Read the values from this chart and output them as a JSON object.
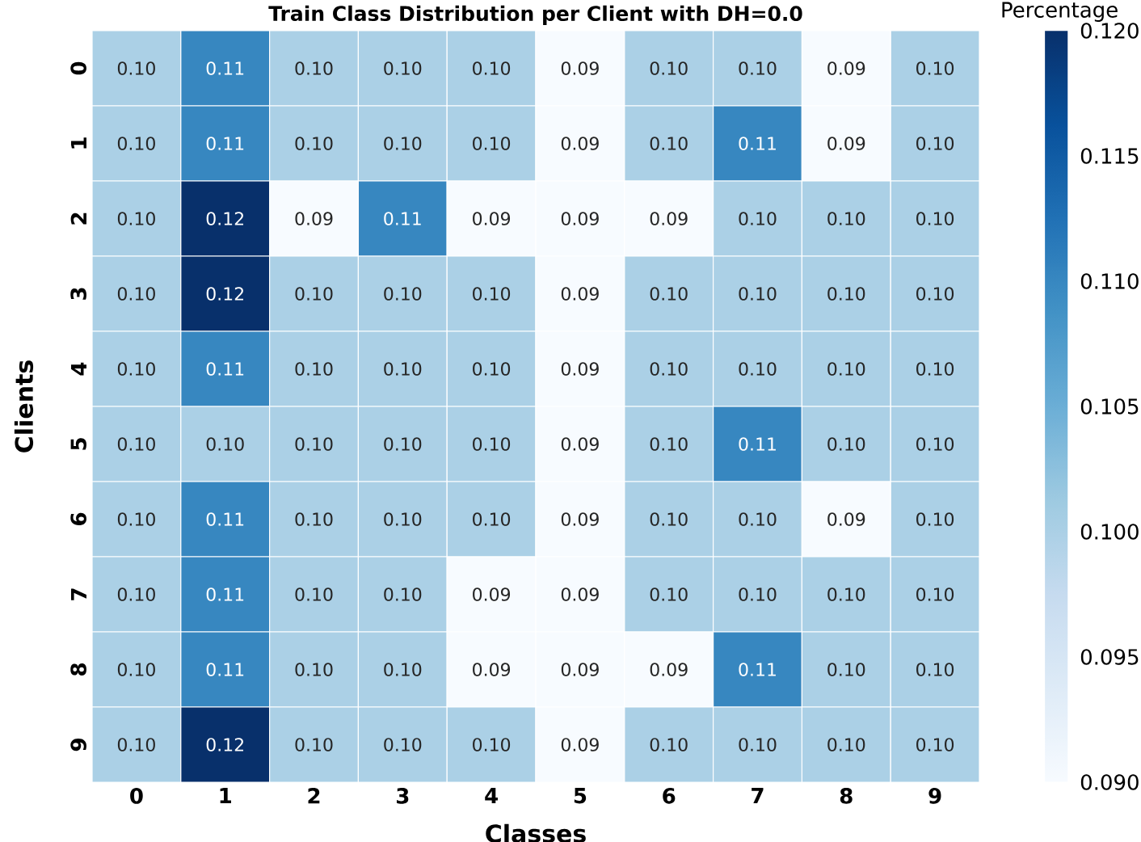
{
  "chart_data": {
    "type": "heatmap",
    "title": "Train Class Distribution per Client with DH=0.0",
    "xlabel": "Classes",
    "ylabel": "Clients",
    "clabel": "Percentage",
    "categories": [
      "0",
      "1",
      "2",
      "3",
      "4",
      "5",
      "6",
      "7",
      "8",
      "9"
    ],
    "y_categories": [
      "0",
      "1",
      "2",
      "3",
      "4",
      "5",
      "6",
      "7",
      "8",
      "9"
    ],
    "cells": [
      [
        0.1,
        0.11,
        0.1,
        0.1,
        0.1,
        0.09,
        0.1,
        0.1,
        0.09,
        0.1
      ],
      [
        0.1,
        0.11,
        0.1,
        0.1,
        0.1,
        0.09,
        0.1,
        0.11,
        0.09,
        0.1
      ],
      [
        0.1,
        0.12,
        0.09,
        0.11,
        0.09,
        0.09,
        0.09,
        0.1,
        0.1,
        0.1
      ],
      [
        0.1,
        0.12,
        0.1,
        0.1,
        0.1,
        0.09,
        0.1,
        0.1,
        0.1,
        0.1
      ],
      [
        0.1,
        0.11,
        0.1,
        0.1,
        0.1,
        0.09,
        0.1,
        0.1,
        0.1,
        0.1
      ],
      [
        0.1,
        0.1,
        0.1,
        0.1,
        0.1,
        0.09,
        0.1,
        0.11,
        0.1,
        0.1
      ],
      [
        0.1,
        0.11,
        0.1,
        0.1,
        0.1,
        0.09,
        0.1,
        0.1,
        0.09,
        0.1
      ],
      [
        0.1,
        0.11,
        0.1,
        0.1,
        0.09,
        0.09,
        0.1,
        0.1,
        0.1,
        0.1
      ],
      [
        0.1,
        0.11,
        0.1,
        0.1,
        0.09,
        0.09,
        0.09,
        0.11,
        0.1,
        0.1
      ],
      [
        0.1,
        0.12,
        0.1,
        0.1,
        0.1,
        0.09,
        0.1,
        0.1,
        0.1,
        0.1
      ]
    ],
    "cell_labels": [
      [
        "0.10",
        "0.11",
        "0.10",
        "0.10",
        "0.10",
        "0.09",
        "0.10",
        "0.10",
        "0.09",
        "0.10"
      ],
      [
        "0.10",
        "0.11",
        "0.10",
        "0.10",
        "0.10",
        "0.09",
        "0.10",
        "0.11",
        "0.09",
        "0.10"
      ],
      [
        "0.10",
        "0.12",
        "0.09",
        "0.11",
        "0.09",
        "0.09",
        "0.09",
        "0.10",
        "0.10",
        "0.10"
      ],
      [
        "0.10",
        "0.12",
        "0.10",
        "0.10",
        "0.10",
        "0.09",
        "0.10",
        "0.10",
        "0.10",
        "0.10"
      ],
      [
        "0.10",
        "0.11",
        "0.10",
        "0.10",
        "0.10",
        "0.09",
        "0.10",
        "0.10",
        "0.10",
        "0.10"
      ],
      [
        "0.10",
        "0.10",
        "0.10",
        "0.10",
        "0.10",
        "0.09",
        "0.10",
        "0.11",
        "0.10",
        "0.10"
      ],
      [
        "0.10",
        "0.11",
        "0.10",
        "0.10",
        "0.10",
        "0.09",
        "0.10",
        "0.10",
        "0.09",
        "0.10"
      ],
      [
        "0.10",
        "0.11",
        "0.10",
        "0.10",
        "0.09",
        "0.09",
        "0.10",
        "0.10",
        "0.10",
        "0.10"
      ],
      [
        "0.10",
        "0.11",
        "0.10",
        "0.10",
        "0.09",
        "0.09",
        "0.09",
        "0.11",
        "0.10",
        "0.10"
      ],
      [
        "0.10",
        "0.12",
        "0.10",
        "0.10",
        "0.10",
        "0.09",
        "0.10",
        "0.10",
        "0.10",
        "0.10"
      ]
    ],
    "clim": [
      0.09,
      0.12
    ],
    "cticks": [
      {
        "value": 0.09,
        "label": "0.090"
      },
      {
        "value": 0.095,
        "label": "0.095"
      },
      {
        "value": 0.1,
        "label": "0.100"
      },
      {
        "value": 0.105,
        "label": "0.105"
      },
      {
        "value": 0.11,
        "label": "0.110"
      },
      {
        "value": 0.115,
        "label": "0.115"
      },
      {
        "value": 0.12,
        "label": "0.120"
      }
    ]
  }
}
